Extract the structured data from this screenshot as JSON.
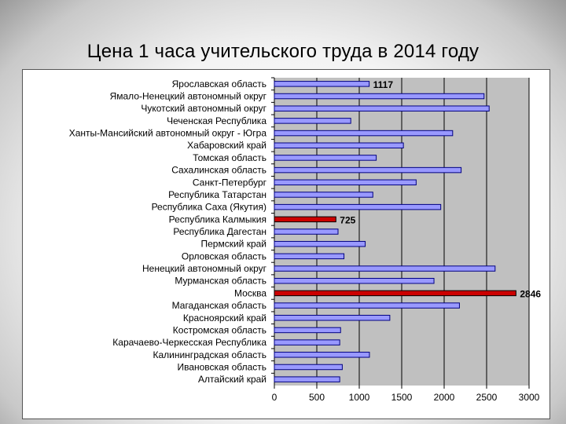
{
  "slide": {
    "title": "Цена 1 часа учительского труда  в 2014 году"
  },
  "colors": {
    "plot_background": "#c0c0c0",
    "bar_fill": "#9999ff",
    "bar_highlight": "#cc0000",
    "bar_stroke": "#000080",
    "gridline": "#000000"
  },
  "chart_data": {
    "type": "bar",
    "orientation": "horizontal",
    "title": "",
    "xlabel": "",
    "ylabel": "",
    "xlim": [
      0,
      3000
    ],
    "xticks": [
      0,
      500,
      1000,
      1500,
      2000,
      2500,
      3000
    ],
    "grid": true,
    "legend": "none",
    "categories": [
      "Ярославская область",
      "Ямало-Ненецкий автономный округ",
      "Чукотский автономный округ",
      "Чеченская Республика",
      "Ханты-Мансийский автономный округ - Югра",
      "Хабаровский край",
      "Томская область",
      "Сахалинская область",
      "Санкт-Петербург",
      "Республика Татарстан",
      "Республика Саха (Якутия)",
      "Республика Калмыкия",
      "Республика Дагестан",
      "Пермский край",
      "Орловская область",
      "Ненецкий автономный округ",
      "Мурманская область",
      "Москва",
      "Магаданская область",
      "Красноярский край",
      "Костромская область",
      "Карачаево-Черкесская Республика",
      "Калининградская область",
      "Ивановская область",
      "Алтайский край"
    ],
    "values": [
      1117,
      2470,
      2530,
      900,
      2100,
      1520,
      1200,
      2200,
      1670,
      1160,
      1960,
      725,
      750,
      1070,
      820,
      2600,
      1880,
      2846,
      2180,
      1360,
      780,
      770,
      1120,
      800,
      770
    ],
    "highlighted": [
      11,
      17
    ],
    "data_labels": [
      {
        "index": 0,
        "text": "1117"
      },
      {
        "index": 11,
        "text": "725"
      },
      {
        "index": 17,
        "text": "2846"
      }
    ]
  }
}
